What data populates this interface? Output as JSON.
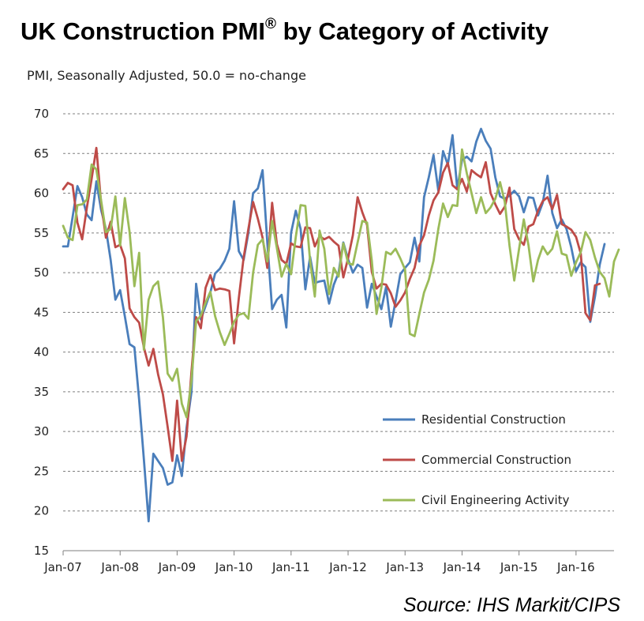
{
  "title": {
    "main": "UK Construction PMI",
    "mark": "®",
    "rest": " by Category of Activity"
  },
  "subtitle": "PMI, Seasonally Adjusted, 50.0 = no-change",
  "source": "Source: IHS Markit/CIPS",
  "chart_data": {
    "type": "line",
    "ylim": [
      15,
      70
    ],
    "y_ticks": [
      "15",
      "20",
      "25",
      "30",
      "35",
      "40",
      "45",
      "50",
      "55",
      "60",
      "65",
      "70"
    ],
    "x_start": "2007-01",
    "x_end": "2016-09",
    "x_ticks": [
      "Jan-07",
      "Jan-08",
      "Jan-09",
      "Jan-10",
      "Jan-11",
      "Jan-12",
      "Jan-13",
      "Jan-14",
      "Jan-15",
      "Jan-16"
    ],
    "grid": "horizontal",
    "legend_position": "bottom-right",
    "series": [
      {
        "name": "Residential Construction",
        "color": "#4a7ebb",
        "values": [
          53.3,
          53.3,
          57.0,
          60.9,
          59.5,
          57.3,
          56.6,
          61.5,
          57.9,
          55.5,
          51.6,
          46.6,
          47.8,
          44.5,
          41.0,
          40.6,
          34.0,
          26.5,
          18.7,
          27.2,
          26.3,
          25.4,
          23.3,
          23.6,
          27.0,
          24.4,
          30.5,
          34.9,
          48.6,
          44.1,
          45.8,
          47.5,
          49.9,
          50.5,
          51.5,
          53.0,
          59.0,
          52.7,
          51.6,
          55.0,
          60.0,
          60.6,
          62.9,
          53.8,
          45.4,
          46.6,
          47.2,
          43.1,
          55.0,
          57.8,
          55.5,
          47.9,
          52.0,
          48.7,
          48.9,
          49.0,
          46.1,
          48.5,
          50.0,
          53.8,
          51.7,
          50.0,
          51.0,
          50.6,
          45.6,
          48.6,
          47.0,
          45.4,
          48.2,
          43.2,
          46.4,
          49.8,
          50.6,
          51.3,
          54.4,
          51.4,
          59.5,
          62.0,
          64.8,
          60.3,
          65.3,
          63.6,
          67.3,
          60.5,
          64.2,
          64.6,
          64.0,
          66.5,
          68.1,
          66.6,
          65.6,
          62.0,
          59.6,
          59.3,
          59.7,
          60.3,
          59.6,
          57.6,
          59.5,
          59.4,
          57.2,
          58.8,
          62.2,
          57.5,
          55.6,
          56.7,
          55.5,
          53.2,
          50.2,
          51.3,
          50.7,
          43.8,
          47.0,
          51.0,
          53.6
        ]
      },
      {
        "name": "Commercial Construction",
        "color": "#be4b48",
        "values": [
          60.5,
          61.3,
          61.0,
          56.3,
          54.2,
          58.2,
          61.8,
          65.7,
          58.8,
          54.4,
          56.4,
          53.2,
          53.5,
          51.8,
          45.5,
          44.4,
          43.7,
          40.6,
          38.3,
          40.4,
          37.2,
          34.7,
          30.6,
          26.3,
          33.9,
          26.3,
          29.4,
          37.4,
          44.4,
          43.0,
          48.1,
          49.7,
          47.8,
          48.0,
          47.9,
          47.7,
          41.1,
          46.8,
          51.9,
          55.5,
          58.9,
          56.8,
          54.4,
          50.6,
          58.8,
          53.6,
          51.6,
          51.1,
          53.7,
          53.3,
          53.2,
          55.7,
          55.6,
          53.3,
          54.6,
          54.2,
          54.5,
          53.9,
          53.4,
          49.4,
          51.8,
          54.7,
          59.5,
          57.6,
          56.0,
          50.1,
          48.0,
          48.6,
          48.5,
          47.4,
          45.7,
          46.5,
          47.5,
          49.2,
          50.6,
          53.4,
          54.7,
          57.2,
          59.1,
          60.1,
          62.6,
          63.8,
          61.0,
          60.5,
          61.8,
          60.2,
          62.9,
          62.4,
          62.0,
          63.9,
          60.0,
          58.6,
          57.4,
          58.3,
          60.7,
          55.5,
          54.2,
          53.5,
          55.8,
          56.1,
          57.8,
          59.0,
          59.5,
          58.0,
          59.8,
          56.1,
          55.8,
          55.4,
          54.5,
          52.4,
          44.9,
          44.0,
          48.4,
          48.6
        ]
      },
      {
        "name": "Civil Engineering Activity",
        "color": "#9bbb59",
        "values": [
          55.9,
          54.4,
          54.1,
          58.5,
          58.6,
          59.2,
          63.6,
          63.0,
          59.1,
          55.1,
          55.5,
          59.6,
          53.4,
          59.4,
          55.1,
          48.3,
          52.5,
          40.3,
          46.6,
          48.3,
          48.9,
          44.4,
          37.3,
          36.4,
          37.9,
          33.5,
          31.8,
          36.3,
          43.9,
          44.6,
          46.2,
          47.6,
          44.5,
          42.5,
          40.9,
          42.3,
          43.8,
          44.7,
          44.9,
          44.2,
          50.0,
          53.5,
          54.2,
          51.4,
          56.5,
          53.1,
          49.5,
          51.1,
          49.8,
          54.5,
          58.5,
          58.4,
          51.5,
          47.0,
          55.3,
          53.0,
          47.3,
          50.6,
          49.5,
          53.7,
          51.2,
          51.0,
          53.8,
          56.5,
          56.3,
          51.5,
          44.8,
          48.1,
          52.6,
          52.3,
          53.0,
          51.8,
          50.4,
          42.3,
          42.0,
          44.8,
          47.5,
          49.1,
          51.5,
          55.5,
          58.7,
          57.0,
          58.5,
          58.4,
          65.5,
          62.5,
          60.0,
          57.5,
          59.5,
          57.5,
          58.2,
          59.3,
          61.4,
          58.9,
          53.4,
          49.0,
          53.0,
          56.7,
          53.4,
          48.9,
          51.6,
          53.3,
          52.3,
          53.0,
          55.2,
          52.4,
          52.2,
          49.6,
          51.3,
          52.6,
          55.1,
          54.1,
          51.9,
          50.1,
          49.3,
          47.0,
          51.4,
          52.9
        ]
      }
    ]
  }
}
